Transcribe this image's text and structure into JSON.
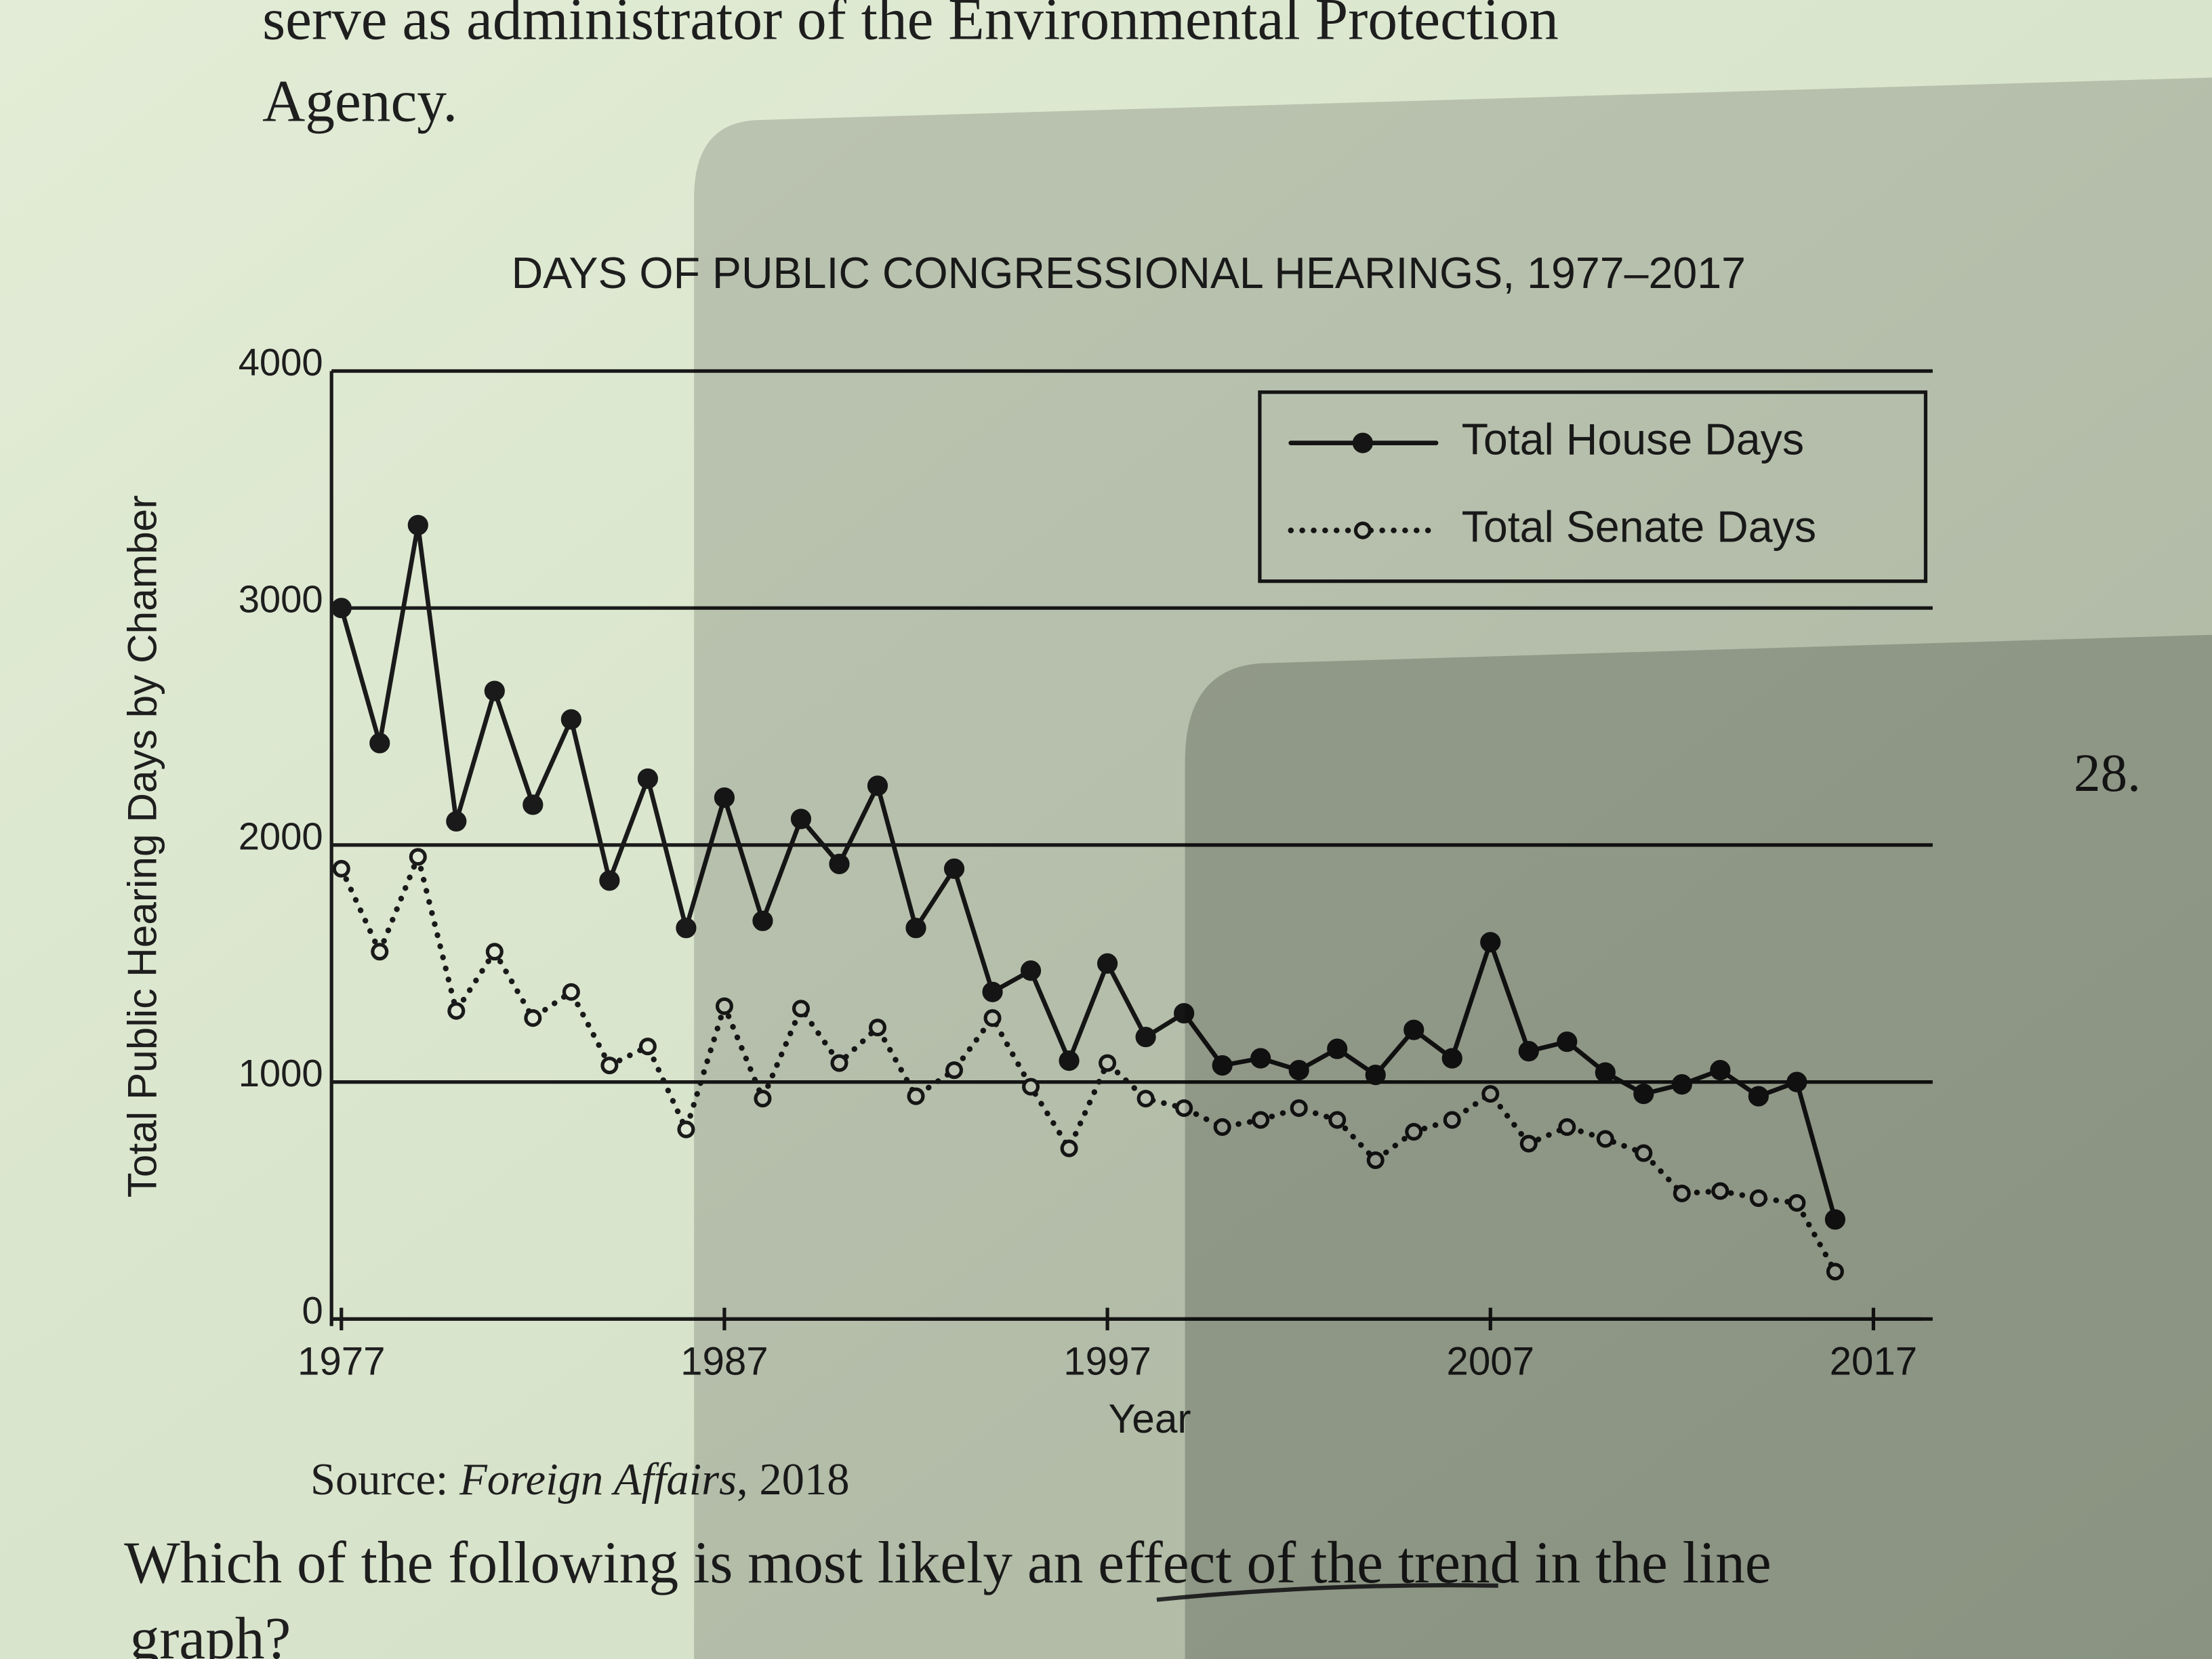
{
  "page_text": {
    "intro_line1": "serve as administrator of the Environmental Protection",
    "intro_line2": "Agency.",
    "question_number": "28.",
    "source_prefix": "Source:",
    "source_title": "Foreign Affairs",
    "source_year": ", 2018",
    "question_line1": "Which of the following is most likely an effect of the trend in the line",
    "question_line2": "graph?"
  },
  "chart_data": {
    "type": "line",
    "title": "DAYS OF PUBLIC CONGRESSIONAL HEARINGS, 1977–2017",
    "x_label": "Year",
    "y_label": "Total Public Hearing Days by Chamber",
    "x": [
      1977,
      1978,
      1979,
      1980,
      1981,
      1982,
      1983,
      1984,
      1985,
      1986,
      1987,
      1988,
      1989,
      1990,
      1991,
      1992,
      1993,
      1994,
      1995,
      1996,
      1997,
      1998,
      1999,
      2000,
      2001,
      2002,
      2003,
      2004,
      2005,
      2006,
      2007,
      2008,
      2009,
      2010,
      2011,
      2012,
      2013,
      2014,
      2015,
      2016
    ],
    "series": [
      {
        "name": "Total House Days",
        "color": "#1a1a1a",
        "line_style": "solid",
        "marker": "filled",
        "values": [
          3000,
          2430,
          3350,
          2100,
          2650,
          2170,
          2530,
          1850,
          2280,
          1650,
          2200,
          1680,
          2110,
          1920,
          2250,
          1650,
          1900,
          1380,
          1470,
          1090,
          1500,
          1190,
          1290,
          1070,
          1100,
          1050,
          1140,
          1030,
          1220,
          1100,
          1590,
          1130,
          1170,
          1040,
          950,
          990,
          1050,
          940,
          1000,
          420
        ]
      },
      {
        "name": "Total Senate Days",
        "color": "#1a1a1a",
        "line_style": "dotted",
        "marker": "open",
        "values": [
          1900,
          1550,
          1950,
          1300,
          1550,
          1270,
          1380,
          1070,
          1150,
          800,
          1320,
          930,
          1310,
          1080,
          1230,
          940,
          1050,
          1270,
          980,
          720,
          1080,
          930,
          890,
          810,
          840,
          890,
          840,
          670,
          790,
          840,
          950,
          740,
          810,
          760,
          700,
          530,
          540,
          510,
          490,
          200
        ]
      }
    ],
    "xlim": [
      1977,
      2017
    ],
    "xticks": [
      1977,
      1987,
      1997,
      2007,
      2017
    ],
    "ylim": [
      0,
      4000
    ],
    "yticks": [
      0,
      1000,
      2000,
      3000,
      4000
    ],
    "grid": true,
    "legend": "upper right"
  }
}
